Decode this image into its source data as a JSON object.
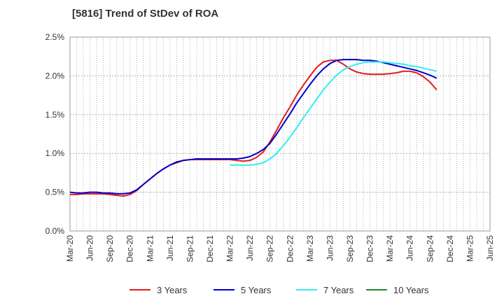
{
  "chart_data": {
    "type": "line",
    "title": "[5816]  Trend of StDev of ROA",
    "xlabel": "",
    "ylabel": "",
    "x_start": "Mar-20",
    "x_ticks": [
      "Mar-20",
      "Jun-20",
      "Sep-20",
      "Dec-20",
      "Mar-21",
      "Jun-21",
      "Sep-21",
      "Dec-21",
      "Mar-22",
      "Jun-22",
      "Sep-22",
      "Dec-22",
      "Mar-23",
      "Jun-23",
      "Sep-23",
      "Dec-23",
      "Mar-24",
      "Jun-24",
      "Sep-24",
      "Dec-24",
      "Mar-25",
      "Jun-25"
    ],
    "y_ticks": [
      "0.0%",
      "0.5%",
      "1.0%",
      "1.5%",
      "2.0%",
      "2.5%"
    ],
    "ylim": [
      0,
      2.5
    ],
    "grid": true,
    "legend_position": "bottom",
    "series": [
      {
        "name": "3 Years",
        "color": "#e41a1c",
        "start": "Mar-20",
        "values": [
          0.47,
          0.47,
          0.48,
          0.48,
          0.48,
          0.48,
          0.47,
          0.46,
          0.45,
          0.47,
          0.52,
          0.6,
          0.67,
          0.74,
          0.8,
          0.85,
          0.88,
          0.91,
          0.92,
          0.92,
          0.92,
          0.92,
          0.92,
          0.92,
          0.92,
          0.91,
          0.9,
          0.91,
          0.95,
          1.02,
          1.15,
          1.3,
          1.46,
          1.6,
          1.75,
          1.88,
          2.0,
          2.11,
          2.18,
          2.2,
          2.2,
          2.15,
          2.09,
          2.05,
          2.03,
          2.02,
          2.02,
          2.02,
          2.03,
          2.04,
          2.06,
          2.06,
          2.04,
          1.99,
          1.92,
          1.82
        ]
      },
      {
        "name": "5 Years",
        "color": "#0000cc",
        "start": "Mar-20",
        "values": [
          0.5,
          0.49,
          0.49,
          0.5,
          0.5,
          0.49,
          0.49,
          0.48,
          0.48,
          0.49,
          0.53,
          0.6,
          0.67,
          0.74,
          0.8,
          0.85,
          0.89,
          0.91,
          0.92,
          0.93,
          0.93,
          0.93,
          0.93,
          0.93,
          0.93,
          0.93,
          0.94,
          0.96,
          1.0,
          1.05,
          1.13,
          1.25,
          1.38,
          1.51,
          1.65,
          1.77,
          1.89,
          2.0,
          2.09,
          2.16,
          2.2,
          2.21,
          2.21,
          2.21,
          2.2,
          2.2,
          2.19,
          2.17,
          2.15,
          2.13,
          2.11,
          2.09,
          2.07,
          2.04,
          2.01,
          1.97
        ]
      },
      {
        "name": "7 Years",
        "color": "#33eeee",
        "start": "Mar-22",
        "values": [
          0.85,
          0.85,
          0.85,
          0.85,
          0.86,
          0.88,
          0.93,
          1.0,
          1.1,
          1.21,
          1.33,
          1.46,
          1.58,
          1.7,
          1.82,
          1.92,
          2.01,
          2.08,
          2.12,
          2.15,
          2.17,
          2.18,
          2.18,
          2.18,
          2.17,
          2.16,
          2.15,
          2.13,
          2.12,
          2.1,
          2.08,
          2.06
        ]
      },
      {
        "name": "10 Years",
        "color": "#228b22",
        "start": "Mar-20",
        "values": []
      }
    ]
  }
}
